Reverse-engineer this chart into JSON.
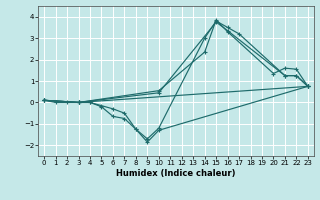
{
  "title": "",
  "xlabel": "Humidex (Indice chaleur)",
  "xlim": [
    -0.5,
    23.5
  ],
  "ylim": [
    -2.5,
    4.5
  ],
  "yticks": [
    -2,
    -1,
    0,
    1,
    2,
    3,
    4
  ],
  "xticks": [
    0,
    1,
    2,
    3,
    4,
    5,
    6,
    7,
    8,
    9,
    10,
    11,
    12,
    13,
    14,
    15,
    16,
    17,
    18,
    19,
    20,
    21,
    22,
    23
  ],
  "bg_color": "#c5e8e8",
  "grid_color": "#ffffff",
  "line_color": "#1e6b6b",
  "lines": [
    {
      "x": [
        0,
        1,
        2,
        3,
        4,
        5,
        6,
        7,
        8,
        9,
        10,
        14,
        15,
        16,
        17,
        21,
        22,
        23
      ],
      "y": [
        0.1,
        0.0,
        0.0,
        0.0,
        0.0,
        -0.2,
        -0.65,
        -0.75,
        -1.25,
        -1.7,
        -1.2,
        3.0,
        3.8,
        3.5,
        3.2,
        1.25,
        1.25,
        0.75
      ]
    },
    {
      "x": [
        0,
        3,
        4,
        5,
        6,
        7,
        8,
        9,
        10,
        23
      ],
      "y": [
        0.1,
        0.0,
        0.0,
        -0.15,
        -0.3,
        -0.5,
        -1.25,
        -1.85,
        -1.3,
        0.75
      ]
    },
    {
      "x": [
        0,
        3,
        10,
        14,
        15,
        16,
        20,
        21,
        22,
        23
      ],
      "y": [
        0.1,
        0.0,
        0.55,
        2.35,
        3.85,
        3.3,
        1.35,
        1.6,
        1.55,
        0.75
      ]
    },
    {
      "x": [
        0,
        3,
        10,
        15,
        16,
        21,
        22,
        23
      ],
      "y": [
        0.1,
        0.0,
        0.45,
        3.75,
        3.35,
        1.25,
        1.25,
        0.75
      ]
    },
    {
      "x": [
        0,
        3,
        23
      ],
      "y": [
        0.1,
        0.0,
        0.75
      ]
    }
  ]
}
